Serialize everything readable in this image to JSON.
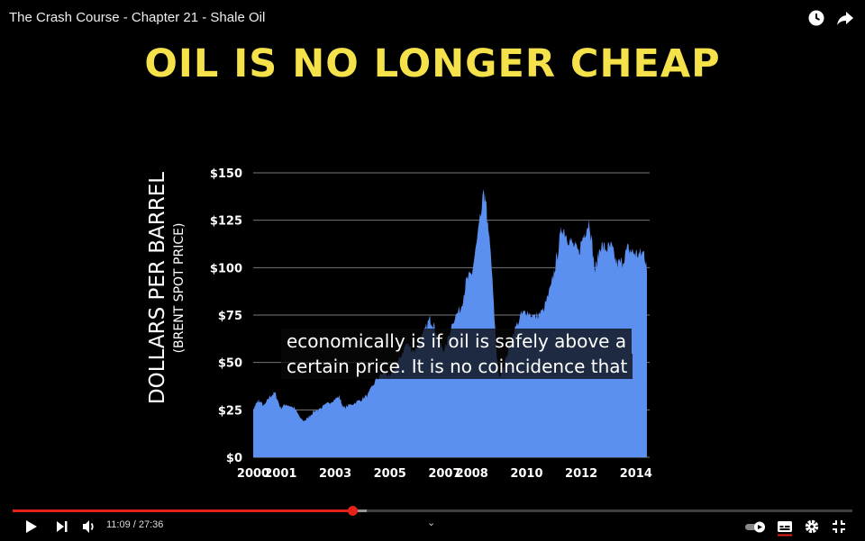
{
  "player": {
    "video_title": "The Crash Course - Chapter 21 - Shale Oil",
    "current_time": "11:09",
    "duration": "27:36",
    "progress": 0.404,
    "buffered": 0.422,
    "accent_color": "#e62117"
  },
  "slide": {
    "title": "OIL IS NO LONGER CHEAP",
    "title_color": "#f5e14a"
  },
  "captions": {
    "line1": "economically is if oil is safely above a",
    "line2": "certain price. It is no coincidence that"
  },
  "chart_data": {
    "type": "area",
    "ylabel": "DOLLARS PER BARREL",
    "ylabel_sub": "(BRENT SPOT PRICE)",
    "xlabel": "",
    "series_color": "#5b8ff0",
    "ylim": [
      0,
      150
    ],
    "xlim": [
      2000,
      2014.5
    ],
    "yticks": [
      0,
      25,
      50,
      75,
      100,
      125,
      150
    ],
    "ytick_labels": [
      "$0",
      "$25",
      "$50",
      "$75",
      "$100",
      "$125",
      "$150"
    ],
    "xticks": [
      2000,
      2001,
      2003,
      2005,
      2007,
      2008,
      2010,
      2012,
      2014
    ],
    "xtick_labels": [
      "2000",
      "2001",
      "2003",
      "2005",
      "2007",
      "2008",
      "2010",
      "2012",
      "2014"
    ],
    "grid": true,
    "x": [
      2000.0,
      2000.1,
      2000.2,
      2000.4,
      2000.6,
      2000.8,
      2001.0,
      2001.2,
      2001.5,
      2001.8,
      2001.95,
      2002.2,
      2002.6,
      2002.9,
      2003.15,
      2003.3,
      2003.6,
      2003.9,
      2004.2,
      2004.5,
      2004.8,
      2005.0,
      2005.3,
      2005.6,
      2005.9,
      2006.2,
      2006.45,
      2006.6,
      2006.8,
      2007.0,
      2007.3,
      2007.6,
      2007.8,
      2008.0,
      2008.2,
      2008.45,
      2008.55,
      2008.7,
      2008.9,
      2009.0,
      2009.2,
      2009.5,
      2009.8,
      2010.0,
      2010.3,
      2010.6,
      2010.9,
      2011.1,
      2011.3,
      2011.5,
      2011.7,
      2011.9,
      2012.1,
      2012.3,
      2012.5,
      2012.7,
      2012.9,
      2013.1,
      2013.3,
      2013.5,
      2013.7,
      2013.9,
      2014.1,
      2014.3,
      2014.4
    ],
    "values": [
      25,
      28,
      30,
      27,
      32,
      34,
      26,
      28,
      26,
      19,
      20,
      24,
      27,
      30,
      32,
      26,
      28,
      30,
      33,
      41,
      45,
      42,
      50,
      60,
      56,
      64,
      73,
      70,
      61,
      56,
      72,
      79,
      93,
      97,
      115,
      140,
      128,
      105,
      55,
      42,
      50,
      65,
      75,
      77,
      74,
      77,
      90,
      105,
      122,
      116,
      112,
      108,
      118,
      125,
      98,
      112,
      110,
      111,
      102,
      103,
      110,
      108,
      107,
      108,
      98
    ]
  }
}
